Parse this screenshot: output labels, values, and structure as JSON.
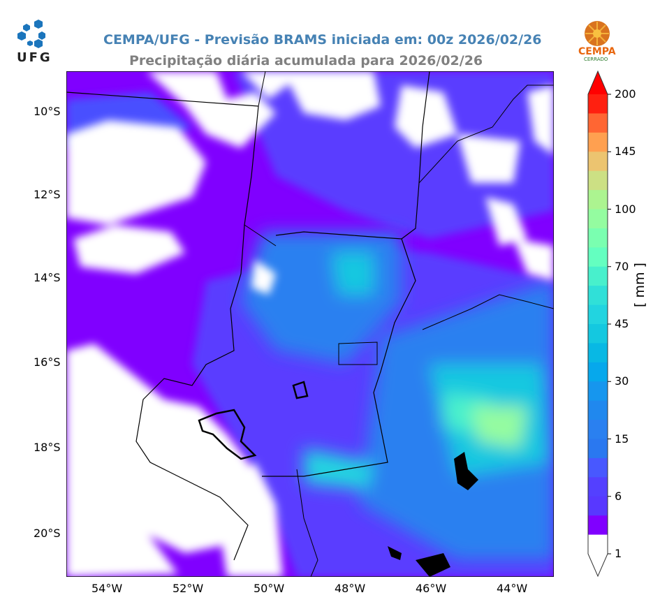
{
  "header": {
    "title": "CEMPA/UFG - Previsão BRAMS iniciada em: 00z 2026/02/26",
    "subtitle": "Precipitação diária acumulada para 2026/02/26",
    "left_logo": "UFG",
    "right_logo": "CEMPA",
    "right_logo_sub": "CERRADO"
  },
  "map": {
    "lat_ticks": [
      "10°S",
      "12°S",
      "14°S",
      "16°S",
      "18°S",
      "20°S"
    ],
    "lon_ticks": [
      "54°W",
      "52°W",
      "50°W",
      "48°W",
      "46°W",
      "44°W"
    ],
    "background_color": "#8000ff"
  },
  "colorbar": {
    "unit": "[ mm ]",
    "tick_labels": [
      "200",
      "145",
      "100",
      "70",
      "45",
      "30",
      "15",
      "6",
      "1"
    ],
    "colors_top_to_bottom": [
      "#ff2010",
      "#ff6633",
      "#ffa050",
      "#ecc470",
      "#cce084",
      "#acf490",
      "#94fca0",
      "#7affb0",
      "#64ffc0",
      "#48f0cc",
      "#30e0d8",
      "#22d4e0",
      "#14c8e0",
      "#08b8e4",
      "#06a8ec",
      "#1696ee",
      "#2088ee",
      "#2a80f0",
      "#2a78f0",
      "#4858ff",
      "#5440ff",
      "#5838ff",
      "#8000ff",
      "#ffffff"
    ],
    "extend_max_color": "#ff0000",
    "extend_min_color": "#ffffff"
  }
}
